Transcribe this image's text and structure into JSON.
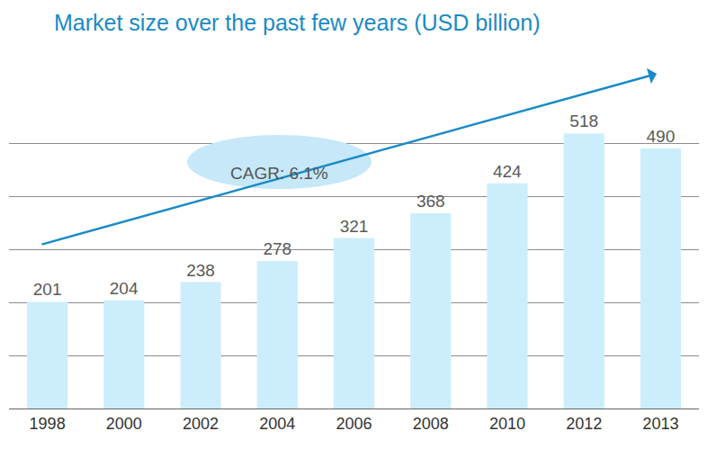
{
  "chart_data": {
    "type": "bar",
    "title": "Market size over the past few years (USD billion)",
    "categories": [
      "1998",
      "2000",
      "2002",
      "2004",
      "2006",
      "2008",
      "2010",
      "2012",
      "2013"
    ],
    "values": [
      201,
      204,
      238,
      278,
      321,
      368,
      424,
      518,
      490
    ],
    "color": "#cceefc",
    "ylim": [
      0,
      600
    ],
    "yticks": [
      0,
      100,
      200,
      300,
      400,
      500,
      600
    ],
    "grid": true,
    "data_labels": true,
    "tick_labels": "x",
    "annotations": [
      "CAGR: 6.1%"
    ]
  }
}
